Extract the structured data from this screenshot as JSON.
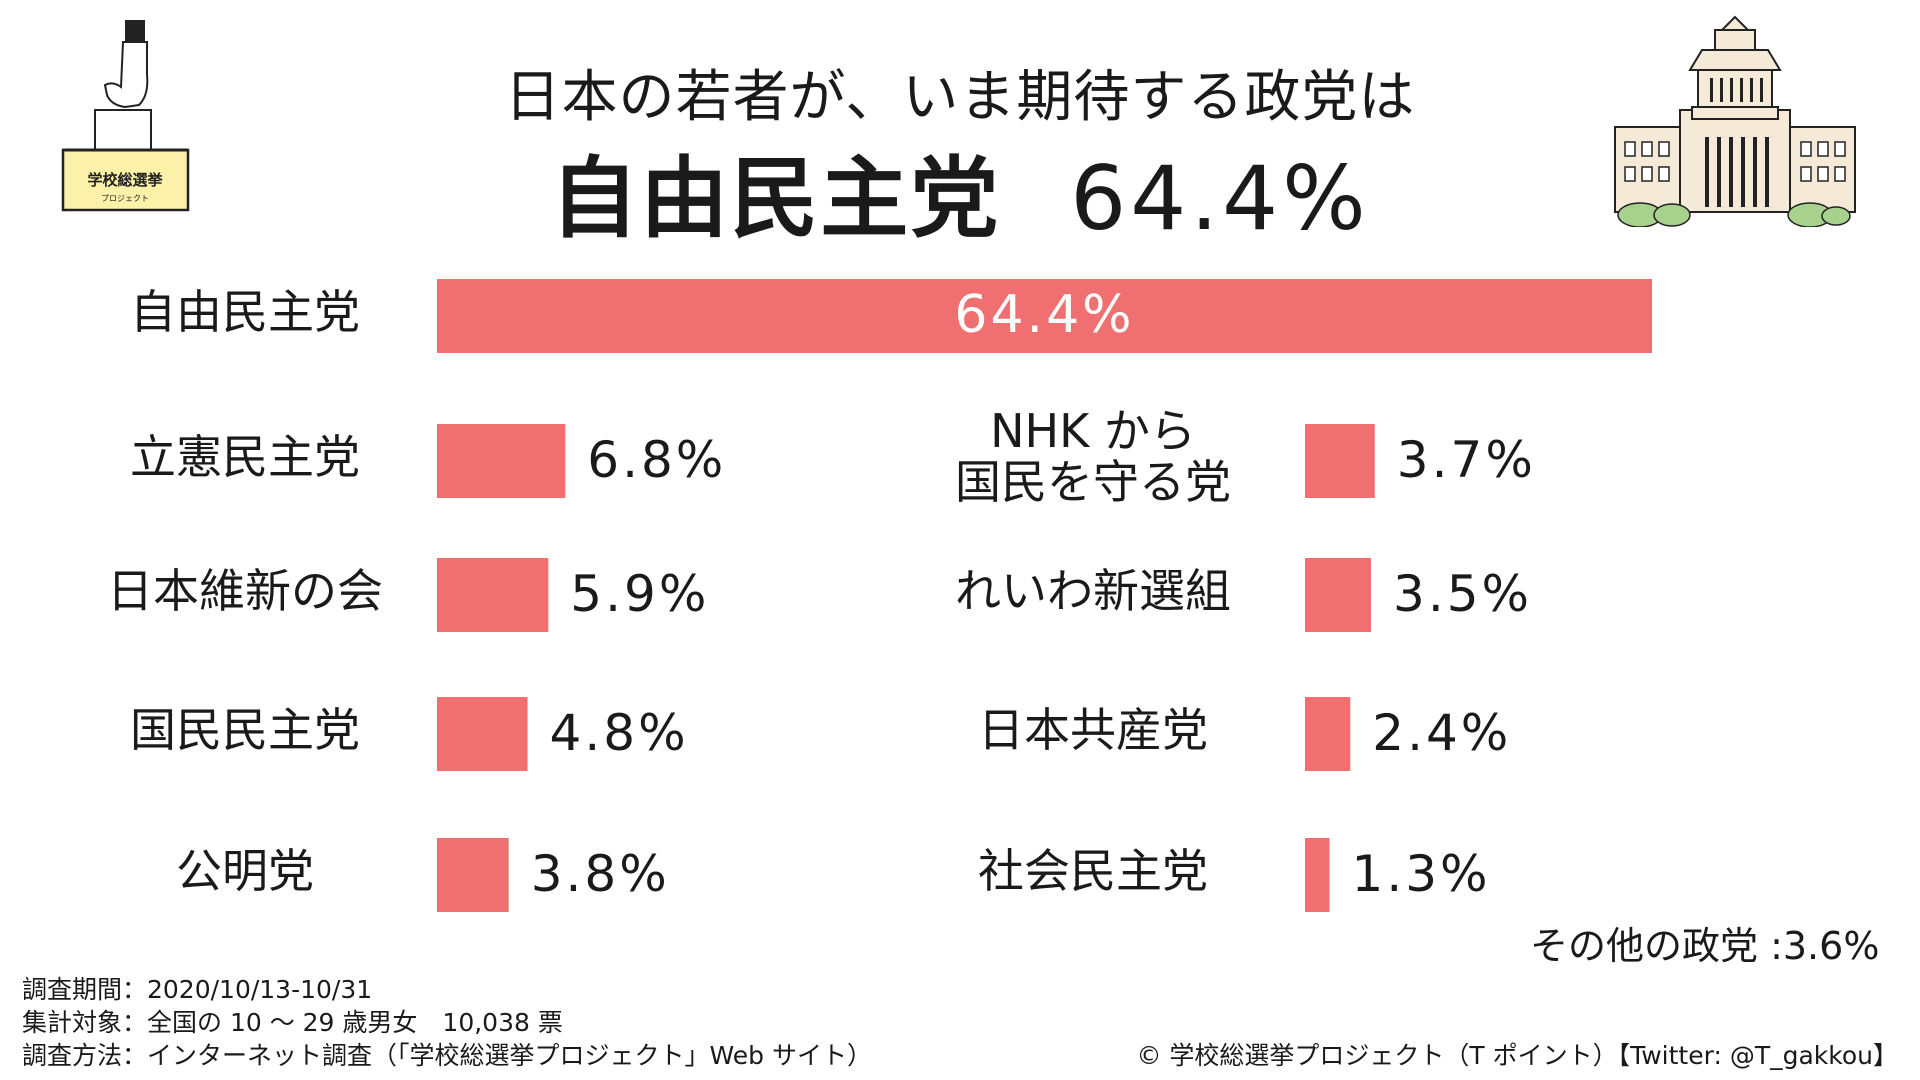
{
  "header": {
    "title_line1": "日本の若者が、いま期待する政党は",
    "title_party": "自由民主党",
    "title_percent": "64.4%"
  },
  "illustrations": {
    "ballot_box_label": "学校総選挙",
    "ballot_box_sublabel": "プロジェクト",
    "ballot_box_icon": "ballot-box-icon",
    "diet_building_icon": "diet-building-icon"
  },
  "chart_data": {
    "type": "bar",
    "orientation": "horizontal",
    "title": "日本の若者が、いま期待する政党は",
    "unit": "%",
    "bar_color": "#f07072",
    "xlim": [
      0,
      64.4
    ],
    "series": [
      {
        "name": "自由民主党",
        "value": 64.4,
        "label": "64.4%"
      },
      {
        "name": "立憲民主党",
        "value": 6.8,
        "label": "6.8%"
      },
      {
        "name": "日本維新の会",
        "value": 5.9,
        "label": "5.9%"
      },
      {
        "name": "国民民主党",
        "value": 4.8,
        "label": "4.8%"
      },
      {
        "name": "公明党",
        "value": 3.8,
        "label": "3.8%"
      },
      {
        "name": "NHKから国民を守る党",
        "value": 3.7,
        "label": "3.7%",
        "display_lines": [
          "NHK から",
          "国民を守る党"
        ]
      },
      {
        "name": "れいわ新選組",
        "value": 3.5,
        "label": "3.5%"
      },
      {
        "name": "日本共産党",
        "value": 2.4,
        "label": "2.4%"
      },
      {
        "name": "社会民主党",
        "value": 1.3,
        "label": "1.3%"
      }
    ],
    "others": {
      "label": "その他の政党",
      "value": 3.6,
      "text": "その他の政党 :3.6%"
    }
  },
  "footer": {
    "survey_period": "調査期間：2020/10/13-10/31",
    "survey_target": "集計対象：全国の 10 ～ 29 歳男女　10,038 票",
    "survey_method": "調査方法：インターネット調査（「学校総選挙プロジェクト」Web サイト）",
    "copyright": "© 学校総選挙プロジェクト（T ポイント）【Twitter: @T_gakkou】"
  }
}
